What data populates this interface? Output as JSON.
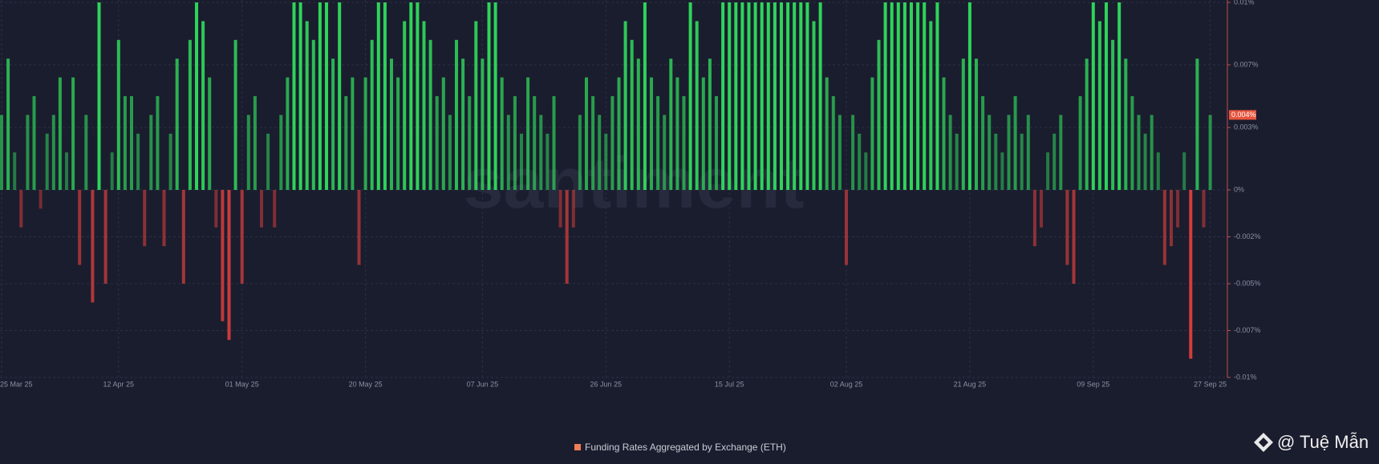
{
  "chart_data": {
    "type": "bar",
    "watermark": "santiment",
    "legend_label": "Funding Rates Aggregated by Exchange (ETH)",
    "legend_color": "#f07d55",
    "attribution": "@ Tuệ Mẫn",
    "positive_color": "#2fd35a",
    "negative_color": "#e0403c",
    "last_value": {
      "value": 0.004,
      "label": "0.004%"
    },
    "grid": true,
    "ylim": [
      -0.01,
      0.01
    ],
    "yticks": [
      {
        "value": 0.01,
        "label": "0.01%"
      },
      {
        "value": 0.00667,
        "label": "0.007%"
      },
      {
        "value": 0.00333,
        "label": "0.003%"
      },
      {
        "value": 0,
        "label": "0%"
      },
      {
        "value": -0.0025,
        "label": "-0.002%"
      },
      {
        "value": -0.005,
        "label": "-0.005%"
      },
      {
        "value": -0.0075,
        "label": "-0.007%"
      },
      {
        "value": -0.01,
        "label": "-0.01%"
      }
    ],
    "categories": [
      "25 Mar 25",
      null,
      null,
      null,
      null,
      null,
      null,
      null,
      null,
      null,
      null,
      null,
      null,
      null,
      null,
      null,
      null,
      null,
      "12 Apr 25",
      null,
      null,
      null,
      null,
      null,
      null,
      null,
      null,
      null,
      null,
      null,
      null,
      null,
      null,
      null,
      null,
      null,
      null,
      "01 May 25",
      null,
      null,
      null,
      null,
      null,
      null,
      null,
      null,
      null,
      null,
      null,
      null,
      null,
      null,
      null,
      null,
      null,
      null,
      "20 May 25",
      null,
      null,
      null,
      null,
      null,
      null,
      null,
      null,
      null,
      null,
      null,
      null,
      null,
      null,
      null,
      null,
      null,
      "07 Jun 25",
      null,
      null,
      null,
      null,
      null,
      null,
      null,
      null,
      null,
      null,
      null,
      null,
      null,
      null,
      null,
      null,
      null,
      null,
      "26 Jun 25",
      null,
      null,
      null,
      null,
      null,
      null,
      null,
      null,
      null,
      null,
      null,
      null,
      null,
      null,
      null,
      null,
      null,
      null,
      "15 Jul 25",
      null,
      null,
      null,
      null,
      null,
      null,
      null,
      null,
      null,
      null,
      null,
      null,
      null,
      null,
      null,
      null,
      null,
      "02 Aug 25",
      null,
      null,
      null,
      null,
      null,
      null,
      null,
      null,
      null,
      null,
      null,
      null,
      null,
      null,
      null,
      null,
      null,
      null,
      "21 Aug 25",
      null,
      null,
      null,
      null,
      null,
      null,
      null,
      null,
      null,
      null,
      null,
      null,
      null,
      null,
      null,
      null,
      null,
      null,
      "09 Sep 25",
      null,
      null,
      null,
      null,
      null,
      null,
      null,
      null,
      null,
      null,
      null,
      null,
      null,
      null,
      null,
      null,
      null,
      "27 Sep 25"
    ],
    "values": [
      0.004,
      0.007,
      0.002,
      -0.002,
      0.004,
      0.005,
      -0.001,
      0.003,
      0.004,
      0.006,
      0.002,
      0.006,
      -0.004,
      0.004,
      -0.006,
      0.01,
      -0.005,
      0.002,
      0.008,
      0.005,
      0.005,
      0.003,
      -0.003,
      0.004,
      0.005,
      -0.003,
      0.003,
      0.007,
      -0.005,
      0.008,
      0.01,
      0.009,
      0.006,
      -0.002,
      -0.007,
      -0.008,
      0.008,
      -0.005,
      0.004,
      0.005,
      -0.002,
      0.003,
      -0.002,
      0.004,
      0.006,
      0.01,
      0.01,
      0.009,
      0.008,
      0.01,
      0.01,
      0.007,
      0.01,
      0.005,
      0.006,
      -0.004,
      0.006,
      0.008,
      0.01,
      0.01,
      0.007,
      0.006,
      0.009,
      0.01,
      0.01,
      0.009,
      0.008,
      0.005,
      0.006,
      0.004,
      0.008,
      0.007,
      0.005,
      0.009,
      0.007,
      0.01,
      0.01,
      0.006,
      0.004,
      0.005,
      0.003,
      0.006,
      0.005,
      0.004,
      0.003,
      0.005,
      -0.002,
      -0.005,
      -0.002,
      0.004,
      0.006,
      0.005,
      0.004,
      0.003,
      0.005,
      0.006,
      0.009,
      0.008,
      0.007,
      0.01,
      0.006,
      0.005,
      0.004,
      0.007,
      0.006,
      0.005,
      0.01,
      0.009,
      0.006,
      0.007,
      0.005,
      0.01,
      0.01,
      0.01,
      0.01,
      0.01,
      0.01,
      0.01,
      0.01,
      0.01,
      0.01,
      0.01,
      0.01,
      0.01,
      0.01,
      0.009,
      0.01,
      0.006,
      0.005,
      0.004,
      -0.004,
      0.004,
      0.003,
      0.002,
      0.006,
      0.008,
      0.01,
      0.01,
      0.01,
      0.01,
      0.01,
      0.01,
      0.01,
      0.009,
      0.01,
      0.006,
      0.004,
      0.003,
      0.007,
      0.01,
      0.007,
      0.005,
      0.004,
      0.003,
      0.002,
      0.004,
      0.005,
      0.003,
      0.004,
      -0.003,
      -0.002,
      0.002,
      0.003,
      0.004,
      -0.004,
      -0.005,
      0.005,
      0.007,
      0.01,
      0.009,
      0.01,
      0.008,
      0.01,
      0.007,
      0.005,
      0.004,
      0.003,
      0.004,
      0.002,
      -0.004,
      -0.003,
      -0.002,
      0.002,
      -0.009,
      0.007,
      -0.002,
      0.004
    ]
  }
}
